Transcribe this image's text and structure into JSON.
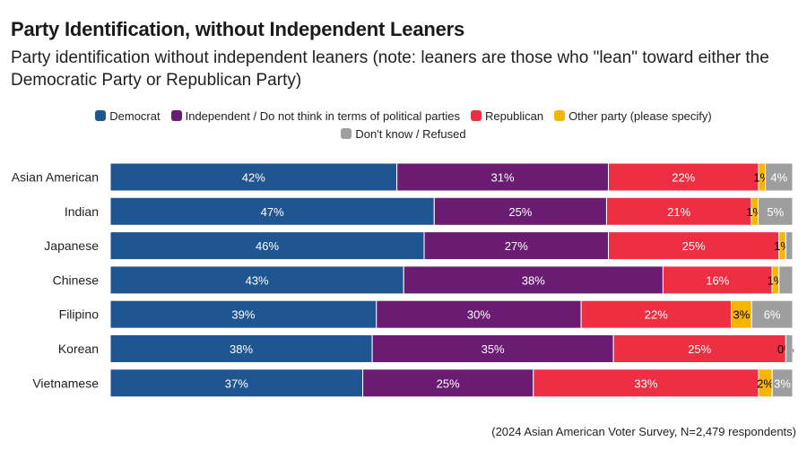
{
  "chart_data": {
    "type": "bar",
    "orientation": "horizontal",
    "stacked": true,
    "percent_stacked": true,
    "title": "Party Identification, without Independent Leaners",
    "subtitle": "Party identification without independent leaners (note: leaners are those who \"lean\" toward either the Democratic Party or Republican Party)",
    "caption": "(2024 Asian American Voter Survey, N=2,479 respondents)",
    "legend_position": "top",
    "categories": [
      "Asian American",
      "Indian",
      "Japanese",
      "Chinese",
      "Filipino",
      "Korean",
      "Vietnamese"
    ],
    "series": [
      {
        "name": "Democrat",
        "color": "#1f5591",
        "values": [
          42,
          47,
          46,
          43,
          39,
          38,
          37
        ]
      },
      {
        "name": "Independent / Do not think in terms of political parties",
        "color": "#6a1b72",
        "values": [
          31,
          25,
          27,
          38,
          30,
          35,
          25
        ]
      },
      {
        "name": "Republican",
        "color": "#ee2e42",
        "values": [
          22,
          21,
          25,
          16,
          22,
          25,
          33
        ]
      },
      {
        "name": "Other party (please specify)",
        "color": "#f7b500",
        "values": [
          1,
          1,
          1,
          1,
          3,
          0,
          2
        ]
      },
      {
        "name": "Don't know / Refused",
        "color": "#9e9e9e",
        "values": [
          4,
          5,
          1,
          2,
          6,
          1,
          3
        ]
      }
    ],
    "data_labels": [
      [
        "42%",
        "31%",
        "22%",
        "1%",
        "4%"
      ],
      [
        "47%",
        "25%",
        "21%",
        "1%",
        "5%"
      ],
      [
        "46%",
        "27%",
        "25%",
        "1%",
        ""
      ],
      [
        "43%",
        "38%",
        "16%",
        "1%",
        ""
      ],
      [
        "39%",
        "30%",
        "22%",
        "3%",
        "6%"
      ],
      [
        "38%",
        "35%",
        "25%",
        "0%",
        ""
      ],
      [
        "37%",
        "25%",
        "33%",
        "2%",
        "3%"
      ]
    ],
    "label_text_colors": [
      "#ffffff",
      "#ffffff",
      "#ffffff",
      "#000000",
      "#ffffff"
    ],
    "xlim": [
      0,
      100
    ],
    "grid": false
  }
}
